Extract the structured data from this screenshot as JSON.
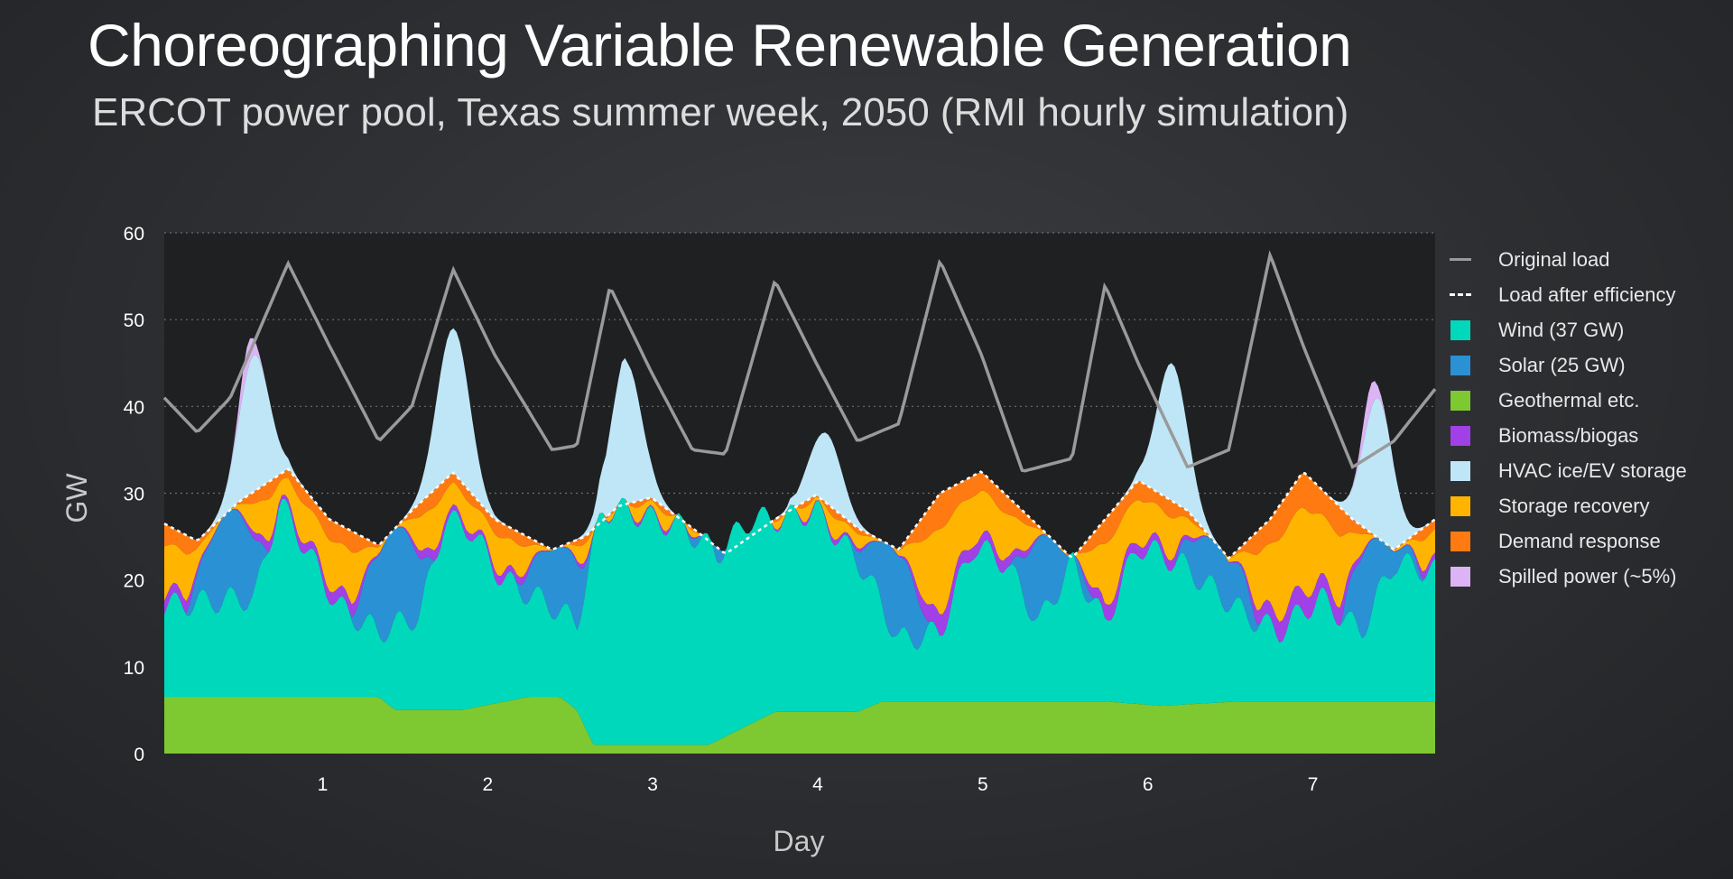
{
  "title": "Choreographing Variable Renewable Generation",
  "subtitle": "ERCOT power pool, Texas summer week, 2050 (RMI hourly simulation)",
  "chart_data": {
    "type": "area",
    "xlabel": "Day",
    "ylabel": "GW",
    "xlim": [
      0.15,
      7.85
    ],
    "ylim": [
      0,
      60
    ],
    "x_ticks": [
      "1",
      "2",
      "3",
      "4",
      "5",
      "6",
      "7"
    ],
    "y_ticks": [
      "0",
      "10",
      "20",
      "30",
      "40",
      "50",
      "60"
    ],
    "grid": "horizontal dotted",
    "legend_position": "right",
    "series": [
      {
        "name": "Original load",
        "style": "line",
        "color": "#9a9a9a",
        "x": [
          0.15,
          0.35,
          0.55,
          0.9,
          1.15,
          1.45,
          1.65,
          1.9,
          2.15,
          2.5,
          2.65,
          2.85,
          3.1,
          3.35,
          3.55,
          3.85,
          4.1,
          4.35,
          4.6,
          4.85,
          5.1,
          5.35,
          5.65,
          5.85,
          6.05,
          6.35,
          6.6,
          6.85,
          7.05,
          7.35,
          7.6,
          7.85
        ],
        "y": [
          41,
          37,
          41,
          56.5,
          47,
          36,
          40,
          55.8,
          46,
          35,
          35.5,
          53.8,
          44,
          35,
          34.5,
          54.5,
          45,
          36,
          38,
          56.8,
          46,
          32.5,
          34,
          54,
          45,
          33,
          35,
          57.5,
          47,
          33,
          36,
          42
        ]
      },
      {
        "name": "Load after efficiency",
        "style": "dashed",
        "color": "#ffffff",
        "x": [
          0.15,
          0.35,
          0.6,
          0.9,
          1.15,
          1.45,
          1.65,
          1.9,
          2.15,
          2.5,
          2.7,
          2.9,
          3.1,
          3.35,
          3.55,
          3.85,
          4.1,
          4.35,
          4.6,
          4.85,
          5.1,
          5.35,
          5.65,
          5.85,
          6.05,
          6.35,
          6.6,
          6.85,
          7.05,
          7.35,
          7.6,
          7.85
        ],
        "y": [
          26.5,
          24.5,
          29,
          32.8,
          27,
          24,
          28,
          32.4,
          27,
          23.5,
          25,
          28.5,
          29.5,
          26,
          23,
          27,
          29.8,
          26,
          23.5,
          30,
          32.5,
          28,
          22.5,
          27,
          31.5,
          28,
          22.5,
          27,
          32.5,
          27,
          23.5,
          27
        ]
      },
      {
        "name": "Spilled power (~5%)",
        "style": "area",
        "color": "#dcb4f5",
        "peak_gw": [
          44,
          42
        ]
      },
      {
        "name": "HVAC ice/EV storage",
        "style": "area",
        "color": "#bfe6f7",
        "peaks_x": [
          0.7,
          1.9,
          2.95,
          4.15,
          6.25,
          7.5
        ],
        "peaks_gw": [
          46,
          49,
          45,
          37,
          45,
          41
        ]
      },
      {
        "name": "Demand response",
        "style": "area",
        "color": "#ff7a10"
      },
      {
        "name": "Storage recovery",
        "style": "area",
        "color": "#ffb500"
      },
      {
        "name": "Biomass/biogas",
        "style": "area",
        "color": "#a240e8"
      },
      {
        "name": "Solar (25 GW)",
        "style": "area",
        "color": "#2a92d4"
      },
      {
        "name": "Wind (37 GW)",
        "style": "area",
        "color": "#00d8bc",
        "x": [
          0.15,
          0.4,
          0.7,
          0.85,
          1.0,
          1.2,
          1.45,
          1.7,
          1.85,
          2.0,
          2.2,
          2.5,
          2.65,
          2.8,
          2.95,
          3.1,
          3.3,
          3.5,
          3.7,
          3.9,
          4.1,
          4.4,
          4.6,
          4.85,
          5.05,
          5.25,
          5.45,
          5.65,
          5.85,
          6.05,
          6.3,
          6.5,
          6.7,
          6.9,
          7.15,
          7.4,
          7.6,
          7.85
        ],
        "y": [
          17,
          17.5,
          18,
          29,
          24,
          17,
          14,
          16,
          27,
          26,
          20,
          17,
          15,
          28,
          28,
          27,
          26,
          23,
          27,
          27,
          28,
          21,
          13,
          14,
          24,
          22,
          15,
          22,
          15,
          24,
          22,
          19,
          16,
          14,
          18,
          14,
          22,
          21
        ]
      },
      {
        "name": "Geothermal etc.",
        "style": "area",
        "color": "#7ec832",
        "x": [
          0.15,
          1.45,
          1.55,
          1.95,
          2.35,
          2.55,
          2.65,
          2.75,
          3.25,
          3.45,
          3.85,
          4.35,
          4.5,
          5.85,
          6.2,
          6.65,
          7.85
        ],
        "y": [
          6.5,
          6.5,
          5,
          5,
          6.5,
          6.5,
          5,
          1,
          1,
          1,
          4.8,
          4.8,
          6,
          6,
          5.5,
          6,
          6
        ]
      }
    ]
  },
  "legend": [
    {
      "label": "Original load",
      "kind": "line",
      "color": "#9a9a9a"
    },
    {
      "label": "Load after efficiency",
      "kind": "dash",
      "color": "#ffffff"
    },
    {
      "label": "Wind (37 GW)",
      "kind": "box",
      "color": "#00d8bc"
    },
    {
      "label": "Solar (25 GW)",
      "kind": "box",
      "color": "#2a92d4"
    },
    {
      "label": "Geothermal etc.",
      "kind": "box",
      "color": "#7ec832"
    },
    {
      "label": "Biomass/biogas",
      "kind": "box",
      "color": "#a240e8"
    },
    {
      "label": "HVAC ice/EV storage",
      "kind": "box",
      "color": "#bfe6f7"
    },
    {
      "label": "Storage recovery",
      "kind": "box",
      "color": "#ffb500"
    },
    {
      "label": "Demand response",
      "kind": "box",
      "color": "#ff7a10"
    },
    {
      "label": "Spilled power (~5%)",
      "kind": "box",
      "color": "#dcb4f5"
    }
  ]
}
